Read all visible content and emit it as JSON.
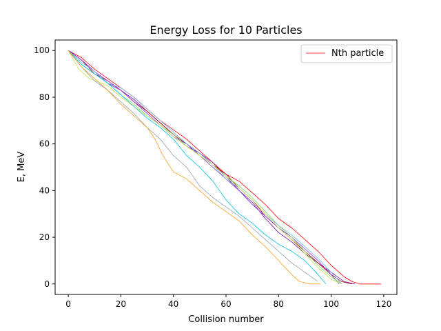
{
  "chart_data": {
    "type": "line",
    "title": "Energy Loss for 10 Particles",
    "xlabel": "Collision number",
    "ylabel": "E, MeV",
    "xlim": [
      -5,
      125
    ],
    "ylim": [
      -4.5,
      104.5
    ],
    "xticks": [
      0,
      20,
      40,
      60,
      80,
      100,
      120
    ],
    "yticks": [
      0,
      20,
      40,
      60,
      80,
      100
    ],
    "grid": false,
    "legend": {
      "placement": "top-right",
      "entries": [
        "Nth particle"
      ]
    },
    "series": [
      {
        "color": "#ff0000",
        "x": [
          0,
          5,
          10,
          15,
          20,
          25,
          30,
          35,
          40,
          45,
          50,
          55,
          60,
          65,
          70,
          75,
          80,
          85,
          90,
          95,
          100,
          105,
          108,
          111,
          115,
          119
        ],
        "y": [
          100,
          97,
          92,
          88,
          84,
          80,
          75,
          70,
          66,
          62,
          57,
          52,
          47,
          44,
          39,
          34,
          28,
          24,
          19,
          14,
          8,
          3,
          1,
          0,
          0,
          0
        ]
      },
      {
        "color": "#7b0fa6",
        "x": [
          0,
          5,
          10,
          15,
          20,
          25,
          30,
          35,
          40,
          45,
          50,
          55,
          60,
          65,
          70,
          75,
          80,
          85,
          90,
          95,
          100,
          105,
          109
        ],
        "y": [
          100,
          96,
          91,
          86,
          83,
          79,
          74,
          69,
          64,
          59,
          56,
          52,
          46,
          40,
          35,
          28,
          22,
          18,
          13,
          9,
          5,
          1,
          0
        ]
      },
      {
        "color": "#9e0000",
        "x": [
          0,
          5,
          10,
          15,
          20,
          25,
          30,
          35,
          40,
          45,
          50,
          55,
          60,
          65,
          70,
          75,
          80,
          85,
          90,
          95,
          100,
          104,
          108
        ],
        "y": [
          100,
          96,
          90,
          87,
          83,
          78,
          74,
          69,
          64,
          60,
          56,
          51,
          47,
          41,
          36,
          29,
          24,
          19,
          14,
          9,
          4,
          1,
          0
        ]
      },
      {
        "color": "#8a2be2",
        "x": [
          0,
          5,
          10,
          15,
          20,
          25,
          30,
          35,
          40,
          45,
          50,
          55,
          60,
          65,
          70,
          75,
          80,
          85,
          90,
          95,
          100,
          103
        ],
        "y": [
          100,
          96,
          91,
          87,
          83,
          78,
          73,
          68,
          63,
          60,
          55,
          50,
          45,
          40,
          34,
          29,
          24,
          20,
          15,
          10,
          4,
          0
        ]
      },
      {
        "color": "#7fd66a",
        "x": [
          0,
          5,
          10,
          15,
          20,
          25,
          30,
          35,
          40,
          45,
          50,
          55,
          60,
          65,
          70,
          75,
          80,
          85,
          90,
          95,
          100,
          104
        ],
        "y": [
          100,
          94,
          90,
          86,
          81,
          77,
          72,
          68,
          64,
          59,
          55,
          51,
          46,
          42,
          37,
          31,
          25,
          20,
          14,
          8,
          3,
          0
        ]
      },
      {
        "color": "#6fb6e8",
        "x": [
          0,
          5,
          10,
          15,
          20,
          25,
          30,
          35,
          40,
          45,
          50,
          55,
          60,
          65,
          70,
          75,
          80,
          85,
          90,
          95,
          100,
          104
        ],
        "y": [
          100,
          95,
          91,
          86,
          84,
          80,
          75,
          70,
          65,
          60,
          56,
          51,
          45,
          41,
          36,
          30,
          25,
          21,
          16,
          11,
          5,
          0
        ]
      },
      {
        "color": "#c8e04a",
        "x": [
          0,
          4,
          8,
          15,
          20,
          25,
          30,
          35,
          40,
          45,
          50,
          55,
          60,
          65,
          70,
          75,
          80,
          85,
          90,
          95,
          100,
          104
        ],
        "y": [
          100,
          92,
          88,
          85,
          80,
          76,
          72,
          68,
          63,
          59,
          55,
          51,
          46,
          41,
          36,
          30,
          24,
          19,
          13,
          7,
          2,
          0
        ]
      },
      {
        "color": "#00c0e8",
        "x": [
          0,
          5,
          10,
          15,
          20,
          25,
          30,
          35,
          40,
          45,
          50,
          55,
          60,
          65,
          70,
          75,
          80,
          85,
          90,
          95,
          98
        ],
        "y": [
          100,
          94,
          90,
          86,
          81,
          76,
          71,
          67,
          62,
          55,
          50,
          44,
          36,
          30,
          26,
          21,
          17,
          14,
          10,
          4,
          0
        ]
      },
      {
        "color": "#8fa3b3",
        "x": [
          0,
          5,
          10,
          15,
          20,
          25,
          30,
          35,
          40,
          45,
          50,
          55,
          60,
          65,
          70,
          75,
          80,
          85,
          90,
          95
        ],
        "y": [
          100,
          93,
          87,
          83,
          78,
          73,
          67,
          62,
          55,
          50,
          42,
          37,
          33,
          29,
          24,
          19,
          14,
          9,
          5,
          1
        ]
      },
      {
        "color": "#ff9c1f",
        "x": [
          0,
          5,
          10,
          15,
          20,
          25,
          30,
          33,
          36,
          40,
          45,
          50,
          55,
          60,
          65,
          70,
          75,
          80,
          85,
          88,
          92,
          96
        ],
        "y": [
          100,
          93,
          88,
          83,
          77,
          72,
          67,
          62,
          55,
          48,
          45,
          40,
          35,
          31,
          27,
          21,
          16,
          10,
          4,
          1,
          0,
          0
        ]
      }
    ]
  }
}
